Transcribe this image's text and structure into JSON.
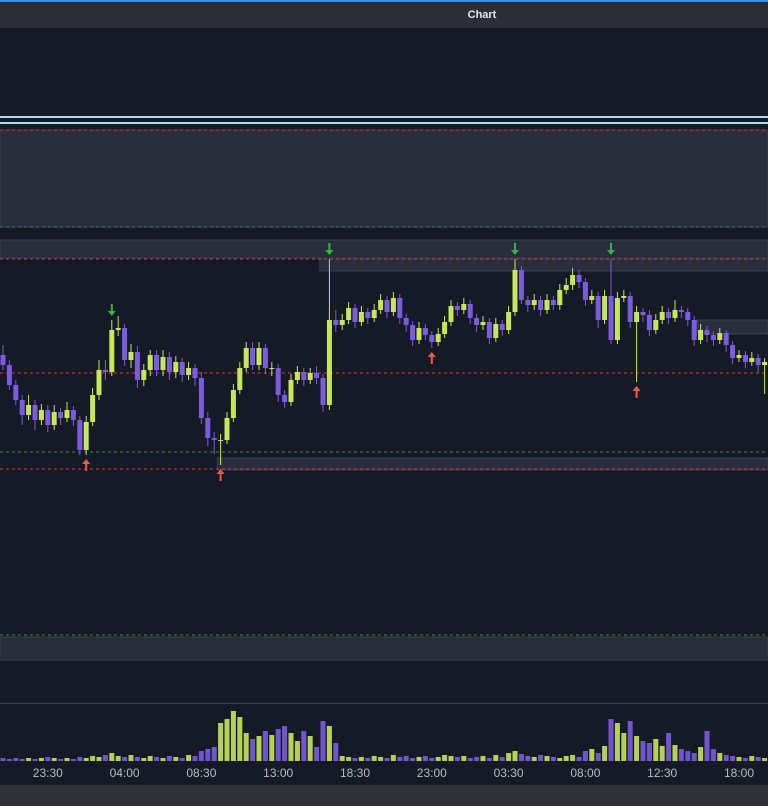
{
  "chart_data": {
    "type": "candlestick",
    "title": "Chart",
    "bull_color": "#c8e65a",
    "bear_color": "#7b5ce0",
    "ylim": [
      2,
      77
    ],
    "candles": [
      [
        44.5,
        45.5,
        43,
        43.5
      ],
      [
        43.5,
        44,
        41,
        41.5
      ],
      [
        41.5,
        42,
        39.5,
        40
      ],
      [
        40,
        40.5,
        37.5,
        38.5
      ],
      [
        38.5,
        40.5,
        38,
        39.5
      ],
      [
        39.5,
        40,
        37,
        38
      ],
      [
        38,
        39.6,
        37.5,
        39
      ],
      [
        39,
        39.5,
        36.8,
        37.5
      ],
      [
        37.5,
        39.5,
        37,
        38.8
      ],
      [
        38.8,
        39.2,
        37.5,
        38.2
      ],
      [
        38.2,
        39.8,
        37.8,
        39
      ],
      [
        39,
        39.4,
        37.4,
        38
      ],
      [
        38,
        38.4,
        34.5,
        35
      ],
      [
        35,
        38.4,
        34.5,
        37.8
      ],
      [
        37.8,
        41.2,
        37.4,
        40.5
      ],
      [
        40.5,
        44,
        40,
        43
      ],
      [
        43,
        44,
        42,
        42.8
      ],
      [
        42.8,
        48,
        42.4,
        47
      ],
      [
        47,
        48.4,
        46.4,
        47.2
      ],
      [
        47.2,
        47.6,
        43.4,
        44
      ],
      [
        44,
        45.6,
        43.2,
        44.8
      ],
      [
        44.8,
        45.4,
        41.2,
        42
      ],
      [
        42,
        43.6,
        41.4,
        43
      ],
      [
        43,
        45,
        42.4,
        44.5
      ],
      [
        44.5,
        45,
        42.4,
        43
      ],
      [
        43,
        45,
        42.4,
        44.3
      ],
      [
        44.3,
        44.8,
        42,
        42.8
      ],
      [
        42.8,
        44.4,
        42.2,
        43.8
      ],
      [
        43.8,
        44.2,
        41.8,
        42.5
      ],
      [
        42.5,
        43.8,
        42,
        43.2
      ],
      [
        43.2,
        43.6,
        41.4,
        42.2
      ],
      [
        42.2,
        42.8,
        37.6,
        38.2
      ],
      [
        38.2,
        38.8,
        35.4,
        36.2
      ],
      [
        36.2,
        36.8,
        34.6,
        36
      ],
      [
        36,
        36.6,
        33.5,
        36
      ],
      [
        36,
        38.8,
        35.6,
        38.2
      ],
      [
        38.2,
        41.6,
        37.8,
        41
      ],
      [
        41,
        43.8,
        40.6,
        43.2
      ],
      [
        43.2,
        45.8,
        42.8,
        45.2
      ],
      [
        45.2,
        45.8,
        43,
        43.5
      ],
      [
        43.5,
        45.8,
        43,
        45.2
      ],
      [
        45.2,
        45.6,
        42.6,
        43.2
      ],
      [
        43.2,
        43.8,
        42.4,
        43.2
      ],
      [
        43.2,
        43.6,
        39.8,
        40.5
      ],
      [
        40.5,
        41,
        39.2,
        39.8
      ],
      [
        39.8,
        42.6,
        39.4,
        42
      ],
      [
        42,
        43.4,
        41.6,
        42.8
      ],
      [
        42.8,
        43.2,
        41.4,
        42
      ],
      [
        42,
        43.2,
        41.6,
        42.7
      ],
      [
        42.7,
        43.4,
        41.6,
        42.2
      ],
      [
        42.2,
        42.6,
        38.8,
        39.5
      ],
      [
        39.5,
        54.1,
        39,
        48
      ],
      [
        48,
        49,
        46.8,
        47.5
      ],
      [
        47.5,
        48.6,
        47,
        48
      ],
      [
        48,
        49.8,
        47.6,
        49.2
      ],
      [
        49.2,
        49.6,
        47.2,
        47.8
      ],
      [
        47.8,
        49.4,
        47.4,
        48.8
      ],
      [
        48.8,
        49.2,
        47.6,
        48.2
      ],
      [
        48.2,
        49.6,
        47.8,
        49
      ],
      [
        49,
        50.6,
        48.6,
        50
      ],
      [
        50,
        50.4,
        48.2,
        48.8
      ],
      [
        48.8,
        50.8,
        48.4,
        50.2
      ],
      [
        50.2,
        50.6,
        47.6,
        48.2
      ],
      [
        48.2,
        48.6,
        46.8,
        47.5
      ],
      [
        47.5,
        47.9,
        45.4,
        46
      ],
      [
        46,
        47.8,
        45.6,
        47.2
      ],
      [
        47.2,
        47.6,
        46,
        46.5
      ],
      [
        46.5,
        46.9,
        45.2,
        45.8
      ],
      [
        45.8,
        47.2,
        45.4,
        46.6
      ],
      [
        46.6,
        48.4,
        46.2,
        47.8
      ],
      [
        47.8,
        50,
        47.4,
        49.4
      ],
      [
        49.4,
        49.8,
        48.4,
        49
      ],
      [
        49,
        50.2,
        48.6,
        49.6
      ],
      [
        49.6,
        50,
        47.6,
        48.2
      ],
      [
        48.2,
        48.6,
        46.8,
        47.5
      ],
      [
        47.5,
        48.4,
        47,
        47.8
      ],
      [
        47.8,
        48.2,
        45.6,
        46.2
      ],
      [
        46.2,
        48.2,
        45.8,
        47.6
      ],
      [
        47.6,
        48,
        46.4,
        47
      ],
      [
        47,
        49.4,
        46.6,
        48.8
      ],
      [
        48.8,
        54.1,
        48.4,
        53
      ],
      [
        53,
        53.4,
        49.6,
        50
      ],
      [
        50,
        50.4,
        48.8,
        49.5
      ],
      [
        49.5,
        50.6,
        49,
        50
      ],
      [
        50,
        50.4,
        48.4,
        49
      ],
      [
        49,
        50.6,
        48.6,
        50
      ],
      [
        50,
        50.4,
        49,
        49.5
      ],
      [
        49.5,
        51.6,
        49,
        51
      ],
      [
        51,
        52.2,
        50.6,
        51.5
      ],
      [
        51.5,
        53.2,
        51,
        52.5
      ],
      [
        52.5,
        53,
        51.2,
        51.8
      ],
      [
        51.8,
        52.2,
        49.4,
        50
      ],
      [
        50,
        51,
        49.6,
        50.4
      ],
      [
        50.4,
        50.8,
        47.2,
        48
      ],
      [
        48,
        51,
        47.6,
        50.4
      ],
      [
        50.4,
        54.1,
        45.6,
        46
      ],
      [
        46,
        50.8,
        45.6,
        50.2
      ],
      [
        50.2,
        51,
        49.8,
        50.4
      ],
      [
        50.4,
        50.8,
        47.2,
        47.8
      ],
      [
        47.8,
        49.4,
        41.8,
        48.8
      ],
      [
        48.8,
        49.2,
        47.8,
        48.5
      ],
      [
        48.5,
        49,
        46.4,
        47
      ],
      [
        47,
        48.6,
        46.6,
        48
      ],
      [
        48,
        49.4,
        47.6,
        48.8
      ],
      [
        48.8,
        49.2,
        47.6,
        48.2
      ],
      [
        48.2,
        50,
        47.8,
        49
      ],
      [
        49,
        49.4,
        48.2,
        48.8
      ],
      [
        48.8,
        49.2,
        47.4,
        48
      ],
      [
        48,
        48.4,
        45.4,
        46
      ],
      [
        46,
        47.6,
        45.6,
        47
      ],
      [
        47,
        47.4,
        45.8,
        46.5
      ],
      [
        46.5,
        46.9,
        45.4,
        46
      ],
      [
        46,
        47.2,
        45.6,
        46.7
      ],
      [
        46.7,
        47,
        44.8,
        45.5
      ],
      [
        45.5,
        45.9,
        43.6,
        44.2
      ],
      [
        44.2,
        45,
        43.8,
        44.5
      ],
      [
        44.5,
        44.9,
        43.2,
        43.8
      ],
      [
        43.8,
        44.8,
        43.4,
        44.2
      ],
      [
        44.2,
        44.6,
        42.8,
        43.5
      ],
      [
        43.5,
        44.2,
        40.6,
        43.8
      ]
    ],
    "volume_ylim": [
      0,
      55
    ],
    "volume": [
      3,
      2,
      3,
      2,
      3,
      2,
      3,
      4,
      3,
      2,
      3,
      2,
      4,
      3,
      5,
      4,
      6,
      8,
      5,
      4,
      6,
      4,
      3,
      5,
      4,
      3,
      5,
      4,
      3,
      6,
      5,
      10,
      12,
      14,
      38,
      42,
      50,
      44,
      28,
      22,
      25,
      30,
      26,
      32,
      35,
      28,
      20,
      30,
      25,
      14,
      40,
      35,
      18,
      5,
      4,
      3,
      4,
      3,
      5,
      4,
      3,
      6,
      4,
      5,
      3,
      4,
      5,
      3,
      4,
      6,
      5,
      4,
      5,
      3,
      4,
      5,
      3,
      6,
      4,
      8,
      10,
      7,
      5,
      4,
      6,
      5,
      4,
      3,
      5,
      6,
      4,
      10,
      12,
      8,
      15,
      42,
      38,
      28,
      40,
      25,
      20,
      18,
      22,
      15,
      28,
      16,
      12,
      10,
      8,
      14,
      30,
      12,
      8,
      6,
      5,
      4,
      3,
      5,
      4,
      3
    ],
    "time_labels": [
      {
        "index": 7,
        "label": "23:30"
      },
      {
        "index": 19,
        "label": "04:00"
      },
      {
        "index": 31,
        "label": "08:30"
      },
      {
        "index": 43,
        "label": "13:00"
      },
      {
        "index": 55,
        "label": "18:30"
      },
      {
        "index": 67,
        "label": "23:00"
      },
      {
        "index": 79,
        "label": "03:30"
      },
      {
        "index": 91,
        "label": "08:00"
      },
      {
        "index": 103,
        "label": "12:30"
      },
      {
        "index": 115,
        "label": "18:00"
      }
    ],
    "levels": [
      {
        "value": 68.3,
        "color": "#a8dce8",
        "style": "solid"
      },
      {
        "value": 67.7,
        "color": "#a8dce8",
        "style": "solid"
      },
      {
        "value": 67,
        "color": "#d83a3a",
        "style": "dashed"
      },
      {
        "value": 54.1,
        "color": "#d83a3a",
        "style": "dashed"
      },
      {
        "value": 42.7,
        "color": "#d83a3a",
        "style": "dashed"
      },
      {
        "value": 33.1,
        "color": "#d83a3a",
        "style": "dashed"
      },
      {
        "value": 57.3,
        "color": "#2e8a36",
        "style": "dashed"
      },
      {
        "value": 34.8,
        "color": "#2e8a36",
        "style": "dashed"
      },
      {
        "value": 16.5,
        "color": "#2e8a36",
        "style": "dashed"
      }
    ],
    "zones": [
      {
        "from": 57.3,
        "to": 67,
        "start": 0
      },
      {
        "from": 54.2,
        "to": 56,
        "start": 0
      },
      {
        "from": 52.9,
        "to": 54.2,
        "start": 50
      },
      {
        "from": 46.6,
        "to": 48,
        "start": 109
      },
      {
        "from": 33,
        "to": 34.2,
        "start": 34
      },
      {
        "from": 14,
        "to": 16.3,
        "start": 0
      }
    ],
    "signals": [
      {
        "index": 17,
        "direction": "down",
        "color": "#3cb043"
      },
      {
        "index": 51,
        "direction": "down",
        "color": "#3cb043"
      },
      {
        "index": 80,
        "direction": "down",
        "color": "#3cb043"
      },
      {
        "index": 95,
        "direction": "down",
        "color": "#3cb043"
      },
      {
        "index": 13,
        "direction": "up",
        "color": "#f05a4a"
      },
      {
        "index": 34,
        "direction": "up",
        "color": "#f05a4a"
      },
      {
        "index": 67,
        "direction": "up",
        "color": "#f05a4a"
      },
      {
        "index": 99,
        "direction": "up",
        "color": "#f05a4a"
      }
    ]
  }
}
